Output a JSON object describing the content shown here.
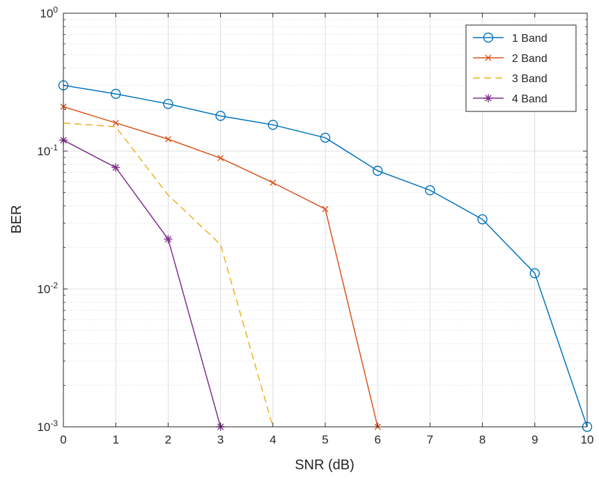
{
  "chart_data": {
    "type": "line",
    "title": "",
    "xlabel": "SNR (dB)",
    "ylabel": "BER",
    "xlim": [
      0,
      10
    ],
    "ylim": [
      0.001,
      1
    ],
    "yscale": "log",
    "grid": true,
    "minor_grid": true,
    "legend_position": "top-right",
    "x_ticks": [
      "0",
      "1",
      "2",
      "3",
      "4",
      "5",
      "6",
      "7",
      "8",
      "9",
      "10"
    ],
    "y_ticks": [
      {
        "base": "10",
        "exp": "-3",
        "value": 0.001
      },
      {
        "base": "10",
        "exp": "-2",
        "value": 0.01
      },
      {
        "base": "10",
        "exp": "-1",
        "value": 0.1
      },
      {
        "base": "10",
        "exp": "0",
        "value": 1
      }
    ],
    "series": [
      {
        "name": "1 Band",
        "color": "#0072BD",
        "marker": "circle",
        "dash": "solid",
        "x": [
          0,
          1,
          2,
          3,
          4,
          5,
          6,
          7,
          8,
          9,
          10
        ],
        "y": [
          0.3,
          0.26,
          0.22,
          0.18,
          0.155,
          0.125,
          0.072,
          0.052,
          0.032,
          0.013,
          0.001
        ]
      },
      {
        "name": "2 Band",
        "color": "#D95319",
        "marker": "x",
        "dash": "solid",
        "x": [
          0,
          1,
          2,
          3,
          4,
          5,
          6
        ],
        "y": [
          0.21,
          0.16,
          0.122,
          0.089,
          0.059,
          0.038,
          0.001
        ]
      },
      {
        "name": "3 Band",
        "color": "#EDB120",
        "marker": "none",
        "dash": "dashed",
        "x": [
          0,
          1,
          2,
          3,
          4
        ],
        "y": [
          0.16,
          0.15,
          0.048,
          0.021,
          0.001
        ]
      },
      {
        "name": "4 Band",
        "color": "#7E2F8E",
        "marker": "asterisk",
        "dash": "solid",
        "x": [
          0,
          1,
          2,
          3
        ],
        "y": [
          0.12,
          0.076,
          0.023,
          0.001
        ]
      }
    ]
  }
}
